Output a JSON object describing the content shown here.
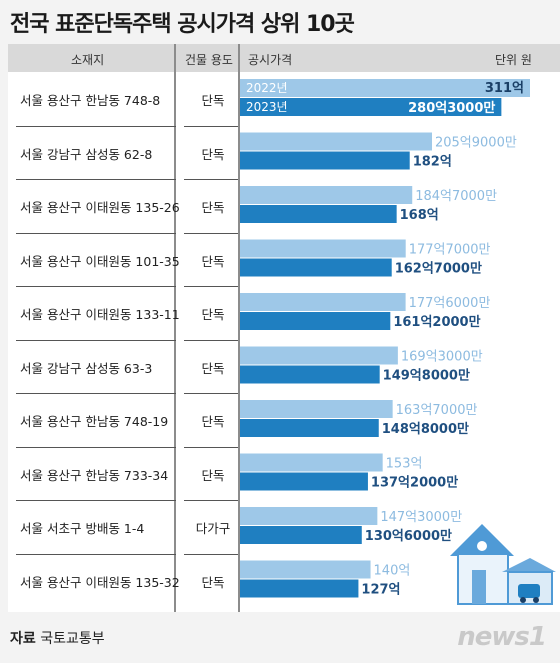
{
  "title": "전국 표준단독주택 공시가격 상위 10곳",
  "header": {
    "location": "소재지",
    "use": "건물 용도",
    "price": "공시가격",
    "unit": "단위 원"
  },
  "source_label": "자료",
  "source_name": "국토교통부",
  "logo_text": "news1",
  "colors": {
    "y2022": "#9ec8e8",
    "y2023": "#1f7fc1",
    "label2022": "#8dbbe0",
    "label2023": "#1f4f80",
    "header_bg": "#d9d9d9"
  },
  "chart_data": {
    "type": "bar",
    "unit": "억 원",
    "series": [
      {
        "name": "2022년",
        "values": [
          311,
          205.9,
          184.7,
          177.7,
          177.6,
          169.3,
          163.7,
          153,
          147.3,
          140
        ],
        "labels": [
          "311억",
          "205억9000만",
          "184억7000만",
          "177억7000만",
          "177억6000만",
          "169억3000만",
          "163억7000만",
          "153억",
          "147억3000만",
          "140억"
        ]
      },
      {
        "name": "2023년",
        "values": [
          280.3,
          182,
          168,
          162.7,
          161.2,
          149.8,
          148.8,
          137.2,
          130.6,
          127
        ],
        "labels": [
          "280억3000만",
          "182억",
          "168억",
          "162억7000만",
          "161억2000만",
          "149억8000만",
          "148억8000만",
          "137억2000만",
          "130억6000만",
          "127억"
        ]
      }
    ],
    "rows": [
      {
        "location": "서울 용산구 한남동 748-8",
        "use": "단독"
      },
      {
        "location": "서울 강남구 삼성동 62-8",
        "use": "단독"
      },
      {
        "location": "서울 용산구 이태원동 135-26",
        "use": "단독"
      },
      {
        "location": "서울 용산구 이태원동 101-35",
        "use": "단독"
      },
      {
        "location": "서울 용산구 이태원동 133-11",
        "use": "단독"
      },
      {
        "location": "서울 강남구 삼성동 63-3",
        "use": "단독"
      },
      {
        "location": "서울 용산구 한남동 748-19",
        "use": "단독"
      },
      {
        "location": "서울 용산구 한남동 733-34",
        "use": "단독"
      },
      {
        "location": "서울 서초구 방배동 1-4",
        "use": "다가구"
      },
      {
        "location": "서울 용산구 이태원동 135-32",
        "use": "단독"
      }
    ],
    "legend_placement": "inside-first-row"
  }
}
